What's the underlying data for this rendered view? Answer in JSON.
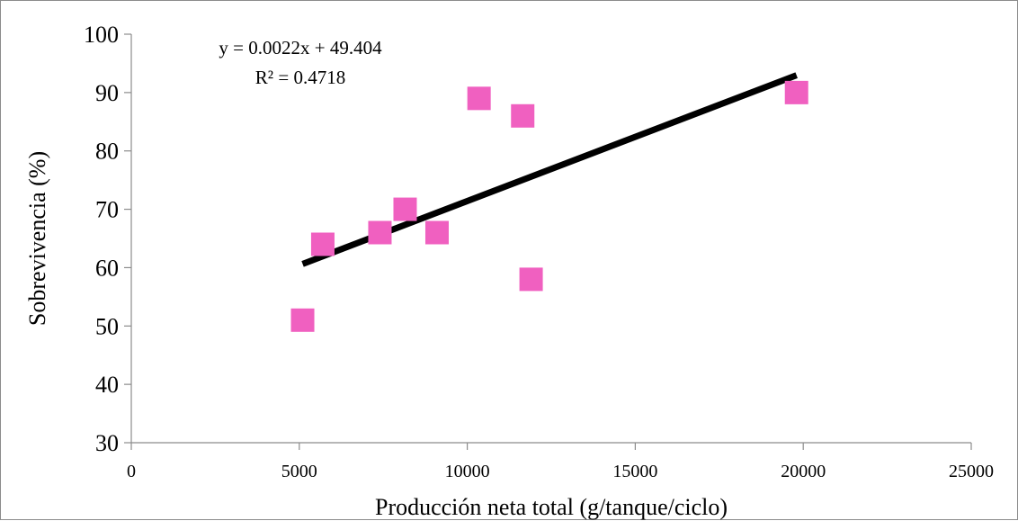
{
  "chart_data": {
    "type": "scatter",
    "xlabel": "Producción neta  total (g/tanque/ciclo)",
    "ylabel": "Sobrevivencia (%)",
    "xlim": [
      0,
      25000
    ],
    "ylim": [
      30,
      100
    ],
    "x_ticks": [
      0,
      5000,
      10000,
      15000,
      20000,
      25000
    ],
    "y_ticks": [
      30,
      40,
      50,
      60,
      70,
      80,
      90,
      100
    ],
    "grid": false,
    "marker": "square",
    "marker_color": "#f060c0",
    "trendline_color": "#000000",
    "points": [
      {
        "x": 5100,
        "y": 51
      },
      {
        "x": 5700,
        "y": 64
      },
      {
        "x": 7400,
        "y": 66
      },
      {
        "x": 8150,
        "y": 70
      },
      {
        "x": 9100,
        "y": 66
      },
      {
        "x": 10350,
        "y": 89
      },
      {
        "x": 11650,
        "y": 86
      },
      {
        "x": 11900,
        "y": 58
      },
      {
        "x": 19800,
        "y": 90
      }
    ],
    "trendline": {
      "slope": 0.0022,
      "intercept": 49.404,
      "x_range": [
        5100,
        19800
      ],
      "equation": "y = 0.0022x + 49.404",
      "r_squared": "R² = 0.4718"
    }
  }
}
